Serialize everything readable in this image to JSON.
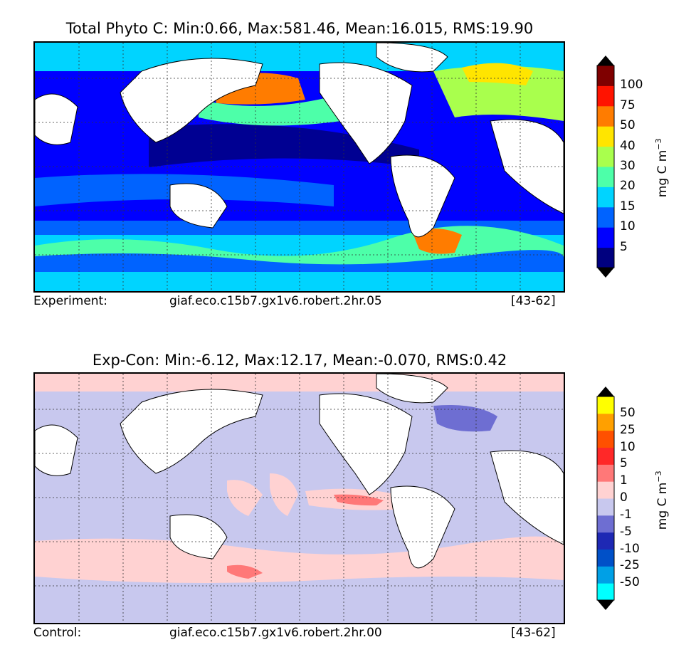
{
  "panels": [
    {
      "title": "Total Phyto C: Min:0.66, Max:581.46, Mean:16.015, RMS:19.90",
      "footer_label": "Experiment:",
      "footer_case": "giaf.eco.c15b7.gx1v6.robert.2hr.05",
      "footer_years": "[43-62]",
      "colorbar": {
        "units_main": "mg C m",
        "units_exp": "−3",
        "ticks": [
          "100",
          "75",
          "50",
          "40",
          "30",
          "20",
          "15",
          "10",
          "5"
        ],
        "colors_bottom_to_top": [
          "#00007f",
          "#0000ff",
          "#0063ff",
          "#00d4ff",
          "#4dffa9",
          "#a9ff4d",
          "#ffe500",
          "#ff7c00",
          "#ff1300",
          "#7f0000"
        ],
        "extend_low": "#000000",
        "extend_high": "#000000"
      }
    },
    {
      "title": "Exp-Con: Min:-6.12, Max:12.17, Mean:-0.070, RMS:0.42",
      "footer_label": "Control:",
      "footer_case": "giaf.eco.c15b7.gx1v6.robert.2hr.00",
      "footer_years": "[43-62]",
      "colorbar": {
        "units_main": "mg C m",
        "units_exp": "−3",
        "ticks": [
          "50",
          "25",
          "10",
          "5",
          "1",
          "0",
          "-1",
          "-5",
          "-10",
          "-25",
          "-50"
        ],
        "colors_bottom_to_top": [
          "#00ffff",
          "#00a0e6",
          "#0050c8",
          "#1e28b4",
          "#6e6ed2",
          "#c8c8ee",
          "#ffd2d2",
          "#ff7878",
          "#ff2828",
          "#ff5000",
          "#ffa000",
          "#ffff00"
        ],
        "extend_low": "#000000",
        "extend_high": "#000000"
      }
    }
  ]
}
